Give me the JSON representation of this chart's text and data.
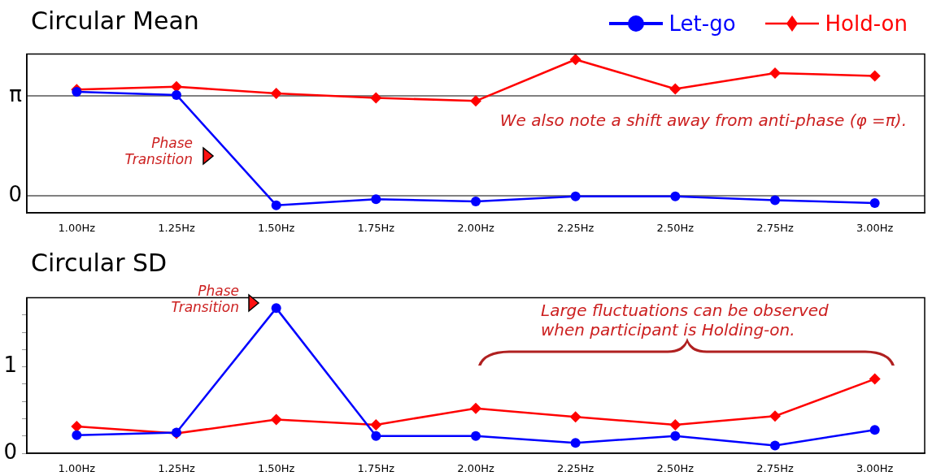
{
  "chart_data": [
    {
      "type": "line",
      "title": "Circular Mean",
      "categories": [
        "1.00Hz",
        "1.25Hz",
        "1.50Hz",
        "1.75Hz",
        "2.00Hz",
        "2.25Hz",
        "2.50Hz",
        "2.75Hz",
        "3.00Hz"
      ],
      "series": [
        {
          "name": "Let-go",
          "color": "#0000ff",
          "marker": "circle",
          "values": [
            3.28,
            3.18,
            -0.3,
            -0.11,
            -0.18,
            -0.02,
            -0.02,
            -0.14,
            -0.23
          ]
        },
        {
          "name": "Hold-on",
          "color": "#ff0000",
          "marker": "diamond",
          "values": [
            3.35,
            3.44,
            3.23,
            3.09,
            2.99,
            4.3,
            3.37,
            3.87,
            3.78
          ]
        }
      ],
      "ylim": [
        -0.54,
        4.47
      ],
      "yticks": [
        {
          "value": 0,
          "label": "0"
        },
        {
          "value": 3.1416,
          "label": "π"
        }
      ],
      "grid": "y",
      "legend": "top right",
      "annotations": [
        "Phase Transition",
        "We also note a shift away from anti-phase (φ =π)."
      ]
    },
    {
      "type": "line",
      "title": "Circular SD",
      "categories": [
        "1.00Hz",
        "1.25Hz",
        "1.50Hz",
        "1.75Hz",
        "2.00Hz",
        "2.25Hz",
        "2.50Hz",
        "2.75Hz",
        "3.00Hz"
      ],
      "series": [
        {
          "color": "#0000ff",
          "marker": "circle",
          "values": [
            0.21,
            0.24,
            1.68,
            0.2,
            0.2,
            0.12,
            0.2,
            0.09,
            0.27
          ]
        },
        {
          "color": "#ff0000",
          "marker": "diamond",
          "values": [
            0.31,
            0.23,
            0.39,
            0.33,
            0.52,
            0.42,
            0.33,
            0.43,
            0.86
          ]
        }
      ],
      "ylim": [
        0,
        1.8
      ],
      "yticks": [
        {
          "value": 0,
          "label": "0"
        },
        {
          "value": 0.2,
          "label": null
        },
        {
          "value": 0.4,
          "label": null
        },
        {
          "value": 0.6,
          "label": null
        },
        {
          "value": 0.8,
          "label": null
        },
        1,
        {
          "value": 1.2,
          "label": null
        },
        {
          "value": 1.4,
          "label": null
        },
        {
          "value": 1.6,
          "label": null
        }
      ],
      "annotations": [
        "Phase Transition",
        "Large fluctuations can be observed when participant is Holding-on."
      ]
    }
  ]
}
